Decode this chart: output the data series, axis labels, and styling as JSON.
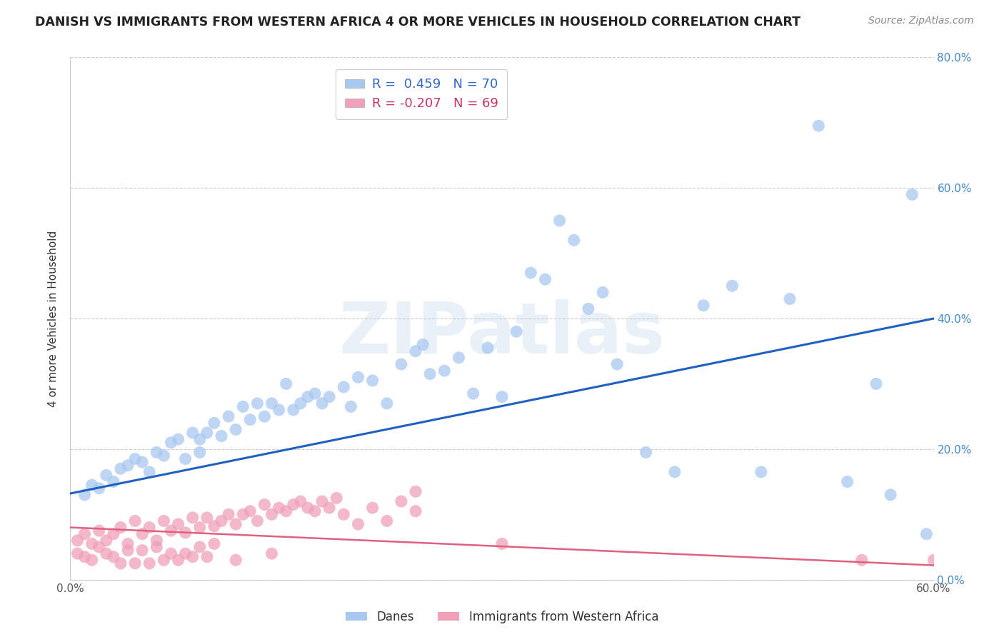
{
  "title": "DANISH VS IMMIGRANTS FROM WESTERN AFRICA 4 OR MORE VEHICLES IN HOUSEHOLD CORRELATION CHART",
  "source": "Source: ZipAtlas.com",
  "ylabel": "4 or more Vehicles in Household",
  "xlim": [
    0.0,
    0.6
  ],
  "ylim": [
    0.0,
    0.8
  ],
  "xticks": [
    0.0,
    0.1,
    0.2,
    0.3,
    0.4,
    0.5,
    0.6
  ],
  "yticks": [
    0.0,
    0.2,
    0.4,
    0.6,
    0.8
  ],
  "xticklabels": [
    "0.0%",
    "",
    "",
    "",
    "",
    "",
    "60.0%"
  ],
  "yticklabels_right": [
    "0.0%",
    "20.0%",
    "40.0%",
    "60.0%",
    "80.0%"
  ],
  "danes_R": 0.459,
  "danes_N": 70,
  "immig_R": -0.207,
  "immig_N": 69,
  "danes_color": "#a8c8f0",
  "immig_color": "#f0a0b8",
  "danes_line_color": "#2060c0",
  "immig_line_color": "#e06080",
  "danes_line_x0": 0.0,
  "danes_line_y0": 0.132,
  "danes_line_x1": 0.6,
  "danes_line_y1": 0.4,
  "immig_line_x0": 0.0,
  "immig_line_y0": 0.08,
  "immig_line_x1": 0.6,
  "immig_line_y1": 0.022,
  "danes_x": [
    0.01,
    0.015,
    0.02,
    0.025,
    0.03,
    0.035,
    0.04,
    0.045,
    0.05,
    0.055,
    0.06,
    0.065,
    0.07,
    0.075,
    0.08,
    0.085,
    0.09,
    0.09,
    0.095,
    0.1,
    0.105,
    0.11,
    0.115,
    0.12,
    0.125,
    0.13,
    0.135,
    0.14,
    0.145,
    0.15,
    0.155,
    0.16,
    0.165,
    0.17,
    0.175,
    0.18,
    0.19,
    0.195,
    0.2,
    0.21,
    0.22,
    0.23,
    0.24,
    0.245,
    0.25,
    0.26,
    0.27,
    0.28,
    0.29,
    0.3,
    0.31,
    0.32,
    0.33,
    0.34,
    0.35,
    0.36,
    0.37,
    0.38,
    0.4,
    0.42,
    0.44,
    0.46,
    0.48,
    0.5,
    0.52,
    0.54,
    0.56,
    0.57,
    0.585,
    0.595
  ],
  "danes_y": [
    0.13,
    0.145,
    0.14,
    0.16,
    0.15,
    0.17,
    0.175,
    0.185,
    0.18,
    0.165,
    0.195,
    0.19,
    0.21,
    0.215,
    0.185,
    0.225,
    0.215,
    0.195,
    0.225,
    0.24,
    0.22,
    0.25,
    0.23,
    0.265,
    0.245,
    0.27,
    0.25,
    0.27,
    0.26,
    0.3,
    0.26,
    0.27,
    0.28,
    0.285,
    0.27,
    0.28,
    0.295,
    0.265,
    0.31,
    0.305,
    0.27,
    0.33,
    0.35,
    0.36,
    0.315,
    0.32,
    0.34,
    0.285,
    0.355,
    0.28,
    0.38,
    0.47,
    0.46,
    0.55,
    0.52,
    0.415,
    0.44,
    0.33,
    0.195,
    0.165,
    0.42,
    0.45,
    0.165,
    0.43,
    0.695,
    0.15,
    0.3,
    0.13,
    0.59,
    0.07
  ],
  "immig_x": [
    0.005,
    0.01,
    0.015,
    0.02,
    0.025,
    0.03,
    0.035,
    0.04,
    0.045,
    0.05,
    0.055,
    0.06,
    0.065,
    0.07,
    0.075,
    0.08,
    0.085,
    0.09,
    0.095,
    0.1,
    0.105,
    0.11,
    0.115,
    0.12,
    0.125,
    0.13,
    0.135,
    0.14,
    0.145,
    0.15,
    0.155,
    0.16,
    0.165,
    0.17,
    0.175,
    0.18,
    0.185,
    0.19,
    0.2,
    0.21,
    0.22,
    0.23,
    0.24,
    0.005,
    0.01,
    0.015,
    0.02,
    0.025,
    0.03,
    0.035,
    0.04,
    0.045,
    0.05,
    0.055,
    0.06,
    0.065,
    0.07,
    0.075,
    0.08,
    0.085,
    0.09,
    0.095,
    0.1,
    0.115,
    0.14,
    0.24,
    0.3,
    0.55,
    0.6
  ],
  "immig_y": [
    0.06,
    0.07,
    0.055,
    0.075,
    0.06,
    0.07,
    0.08,
    0.055,
    0.09,
    0.07,
    0.08,
    0.06,
    0.09,
    0.075,
    0.085,
    0.072,
    0.095,
    0.08,
    0.095,
    0.082,
    0.09,
    0.1,
    0.085,
    0.1,
    0.105,
    0.09,
    0.115,
    0.1,
    0.11,
    0.105,
    0.115,
    0.12,
    0.11,
    0.105,
    0.12,
    0.11,
    0.125,
    0.1,
    0.085,
    0.11,
    0.09,
    0.12,
    0.105,
    0.04,
    0.035,
    0.03,
    0.05,
    0.04,
    0.035,
    0.025,
    0.045,
    0.025,
    0.045,
    0.025,
    0.05,
    0.03,
    0.04,
    0.03,
    0.04,
    0.035,
    0.05,
    0.035,
    0.055,
    0.03,
    0.04,
    0.135,
    0.055,
    0.03,
    0.03
  ],
  "watermark": "ZIPatlas",
  "background_color": "#ffffff",
  "grid_color": "#cccccc"
}
